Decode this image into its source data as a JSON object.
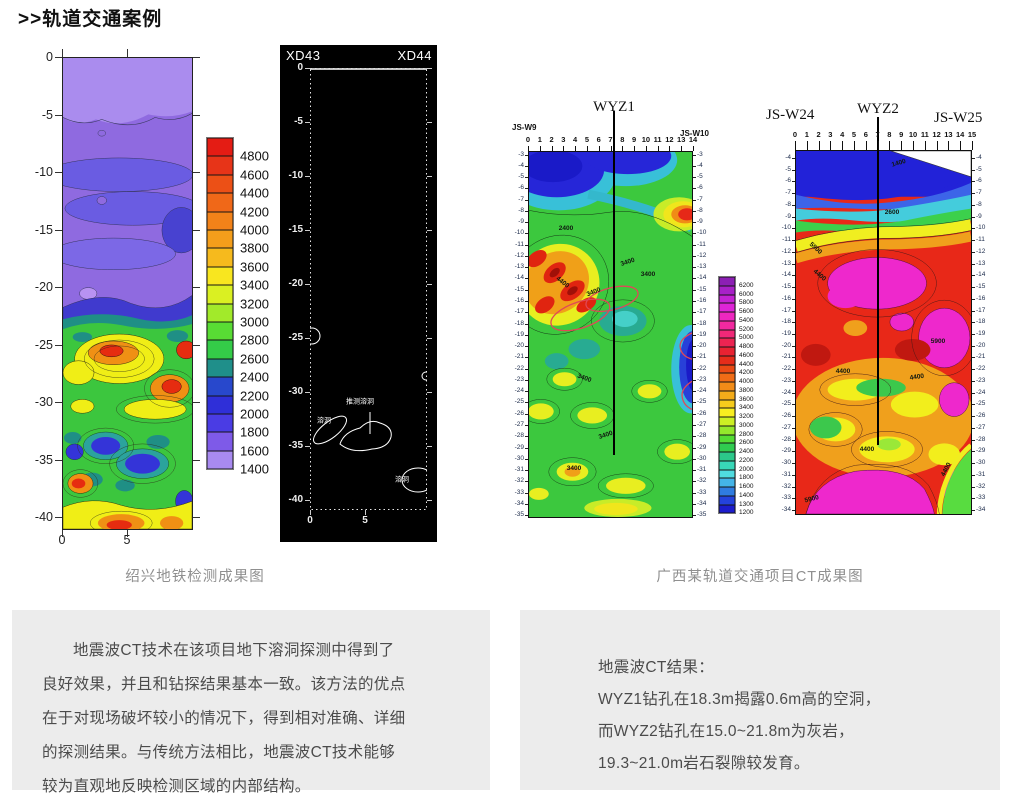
{
  "page": {
    "title": ">>轨道交通案例"
  },
  "left_figure": {
    "caption": "绍兴地铁检测成果图",
    "tomogram": {
      "y_ticks": [
        "0",
        "-5",
        "-10",
        "-15",
        "-20",
        "-25",
        "-30",
        "-35",
        "-40"
      ],
      "x_ticks": [
        "0",
        "5"
      ]
    },
    "colorbar": {
      "labels": [
        "4800",
        "4600",
        "4400",
        "4200",
        "4000",
        "3800",
        "3600",
        "3400",
        "3200",
        "3000",
        "2800",
        "2600",
        "2400",
        "2200",
        "2000",
        "1800",
        "1600",
        "1400"
      ],
      "colors": [
        "#e41c14",
        "#e73418",
        "#ec5016",
        "#f06818",
        "#f28219",
        "#f49e1b",
        "#f6ba1d",
        "#f8e61f",
        "#daf022",
        "#a2ea2a",
        "#58dc34",
        "#34cc48",
        "#1f8f8a",
        "#2848cc",
        "#2f2fd8",
        "#4a3ce4",
        "#7e5ae8",
        "#a88af0"
      ]
    },
    "interpretation": {
      "label_left": "XD43",
      "label_right": "XD44",
      "y_ticks": [
        "0",
        "-5",
        "-10",
        "-15",
        "-20",
        "-25",
        "-30",
        "-35",
        "-40"
      ],
      "x_ticks": [
        "0",
        "5"
      ],
      "annotations": [
        "溶洞",
        "推测溶洞",
        "溶洞"
      ]
    }
  },
  "right_figure": {
    "caption": "广西某轨道交通项目CT成果图",
    "plot1": {
      "title": "WYZ1",
      "borehole_left": "JS-W9",
      "borehole_right": "JS-W10",
      "x_ticks": [
        "0",
        "1",
        "2",
        "3",
        "4",
        "5",
        "6",
        "7",
        "8",
        "9",
        "10",
        "11",
        "12",
        "13",
        "14"
      ],
      "y_ticks": [
        "-3",
        "-4",
        "-5",
        "-6",
        "-7",
        "-8",
        "-9",
        "-10",
        "-11",
        "-12",
        "-13",
        "-14",
        "-15",
        "-16",
        "-17",
        "-18",
        "-19",
        "-20",
        "-21",
        "-22",
        "-23",
        "-24",
        "-25",
        "-26",
        "-27",
        "-28",
        "-29",
        "-30",
        "-31",
        "-32",
        "-33",
        "-34",
        "-35"
      ],
      "contour_labels": [
        "2400",
        "3400",
        "4400",
        "3400",
        "3400",
        "3400",
        "3400",
        "3400"
      ]
    },
    "colorbar": {
      "labels": [
        "6200",
        "6000",
        "5800",
        "5600",
        "5400",
        "5200",
        "5000",
        "4800",
        "4600",
        "4400",
        "4200",
        "4000",
        "3800",
        "3600",
        "3400",
        "3200",
        "3000",
        "2800",
        "2600",
        "2400",
        "2200",
        "2000",
        "1800",
        "1600",
        "1400",
        "1300",
        "1200"
      ],
      "colors": [
        "#8c1fb4",
        "#a821c8",
        "#c423d4",
        "#de25d8",
        "#ee27c0",
        "#f229a0",
        "#f02878",
        "#ec2452",
        "#e82232",
        "#e62c1a",
        "#ea4a14",
        "#f06c16",
        "#f28c18",
        "#f4ac1a",
        "#f6cc1c",
        "#f8ee20",
        "#ccf024",
        "#94e82c",
        "#54dc34",
        "#30cc50",
        "#2cc88a",
        "#38d8b8",
        "#50dce0",
        "#44b4e8",
        "#2f7ce0",
        "#2442dc",
        "#1c1ccc"
      ]
    },
    "plot2": {
      "title": "WYZ2",
      "borehole_left": "JS-W24",
      "borehole_right": "JS-W25",
      "x_ticks": [
        "0",
        "1",
        "2",
        "3",
        "4",
        "5",
        "6",
        "7",
        "8",
        "9",
        "10",
        "11",
        "12",
        "13",
        "14",
        "15"
      ],
      "y_ticks": [
        "-4",
        "-5",
        "-6",
        "-7",
        "-8",
        "-9",
        "-10",
        "-11",
        "-12",
        "-13",
        "-14",
        "-15",
        "-16",
        "-17",
        "-18",
        "-19",
        "-20",
        "-21",
        "-22",
        "-23",
        "-24",
        "-25",
        "-26",
        "-27",
        "-28",
        "-29",
        "-30",
        "-31",
        "-32",
        "-33",
        "-34"
      ],
      "contour_labels": [
        "1400",
        "2600",
        "4400",
        "5900",
        "4400",
        "5900",
        "4400",
        "4400",
        "4400",
        "5900"
      ]
    }
  },
  "notes": {
    "left_paragraph": "地震波CT技术在该项目地下溶洞探测中得到了良好效果，并且和钻探结果基本一致。该方法的优点在于对现场破坏较小的情况下，得到相对准确、详细的探测结果。与传统方法相比，地震波CT技术能够较为直观地反映检测区域的内部结构。",
    "right_title": "地震波CT结果：",
    "right_lines": [
      "WYZ1钻孔在18.3m揭露0.6m高的空洞，",
      "而WYZ2钻孔在15.0~21.8m为灰岩，",
      "19.3~21.0m岩石裂隙较发育。"
    ]
  },
  "chart_data": [
    {
      "type": "heatmap",
      "title": "绍兴地铁检测成果图",
      "x_range": [
        0,
        10
      ],
      "y_range": [
        -41,
        0
      ],
      "colorbar_min": 1400,
      "colorbar_max": 4800,
      "colorbar_step": 200,
      "legend_position": "right"
    },
    {
      "type": "heatmap",
      "title": "广西某轨道交通项目CT成果图",
      "panels": [
        "WYZ1 JS-W9~JS-W10",
        "WYZ2 JS-W24~JS-W25"
      ],
      "x_range": [
        0,
        15
      ],
      "y_range": [
        -35,
        -3
      ],
      "colorbar_min": 1200,
      "colorbar_max": 6200,
      "contour_levels": [
        1400,
        2400,
        2600,
        3400,
        4400,
        5900
      ],
      "legend_position": "center"
    }
  ]
}
